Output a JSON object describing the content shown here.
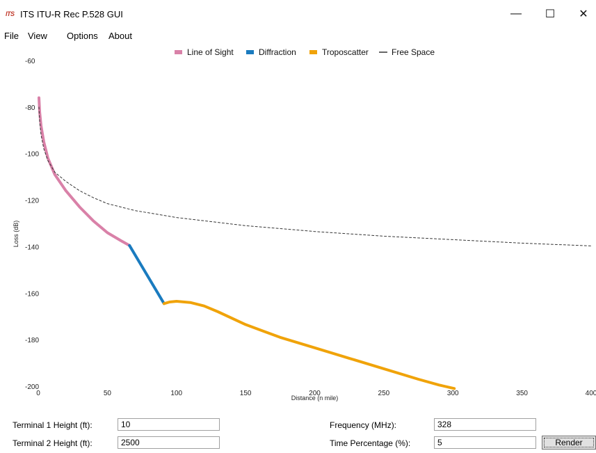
{
  "window": {
    "logo_text": "ITS",
    "title": "ITS ITU-R Rec P.528 GUI",
    "minimize_glyph": "—",
    "maximize_glyph": "☐",
    "close_glyph": "✕"
  },
  "menu": {
    "items": [
      "File",
      "View",
      "Options",
      "About"
    ]
  },
  "legend": {
    "items": [
      {
        "label": "Line of Sight",
        "color": "#d981a8"
      },
      {
        "label": "Diffraction",
        "color": "#1a7bbf"
      },
      {
        "label": "Troposcatter",
        "color": "#f0a30a"
      },
      {
        "label": "Free Space",
        "color": "#333333"
      }
    ]
  },
  "chart_data": {
    "type": "line",
    "xlabel": "Distance (n mile)",
    "ylabel": "Loss (dB)",
    "xlim": [
      0,
      400
    ],
    "ylim": [
      -200,
      -60
    ],
    "xticks": [
      0,
      50,
      100,
      150,
      200,
      250,
      300,
      350,
      400
    ],
    "yticks": [
      -60,
      -80,
      -100,
      -120,
      -140,
      -160,
      -180,
      -200
    ],
    "series": [
      {
        "name": "Line of Sight",
        "color": "#d981a8",
        "style": "solid",
        "points": [
          [
            0.5,
            -76
          ],
          [
            1,
            -82
          ],
          [
            2,
            -88
          ],
          [
            4,
            -95
          ],
          [
            7,
            -102
          ],
          [
            12,
            -109
          ],
          [
            20,
            -116
          ],
          [
            30,
            -123
          ],
          [
            40,
            -129
          ],
          [
            50,
            -134
          ],
          [
            60,
            -137.5
          ],
          [
            66,
            -139.5
          ]
        ]
      },
      {
        "name": "Diffraction",
        "color": "#1a7bbf",
        "style": "solid",
        "points": [
          [
            66,
            -139.5
          ],
          [
            91,
            -164.5
          ]
        ]
      },
      {
        "name": "Troposcatter",
        "color": "#f0a30a",
        "style": "solid",
        "points": [
          [
            91,
            -164.5
          ],
          [
            95,
            -163.8
          ],
          [
            100,
            -163.5
          ],
          [
            110,
            -164
          ],
          [
            120,
            -165.5
          ],
          [
            130,
            -168
          ],
          [
            150,
            -173.5
          ],
          [
            175,
            -179
          ],
          [
            200,
            -183.5
          ],
          [
            225,
            -188
          ],
          [
            250,
            -192.5
          ],
          [
            275,
            -197
          ],
          [
            290,
            -199.5
          ],
          [
            301,
            -201
          ]
        ]
      },
      {
        "name": "Free Space",
        "color": "#333333",
        "style": "dashed",
        "points": [
          [
            0.5,
            -80
          ],
          [
            1,
            -86
          ],
          [
            2,
            -92
          ],
          [
            4,
            -98
          ],
          [
            7,
            -103
          ],
          [
            12,
            -108
          ],
          [
            20,
            -112
          ],
          [
            30,
            -116
          ],
          [
            40,
            -119
          ],
          [
            50,
            -121.5
          ],
          [
            70,
            -124.5
          ],
          [
            100,
            -127.5
          ],
          [
            150,
            -131
          ],
          [
            200,
            -133.5
          ],
          [
            250,
            -135.5
          ],
          [
            300,
            -137
          ],
          [
            350,
            -138.5
          ],
          [
            400,
            -139.7
          ]
        ]
      }
    ]
  },
  "form": {
    "terminal1_label": "Terminal 1 Height (ft):",
    "terminal1_value": "10",
    "terminal2_label": "Terminal 2 Height (ft):",
    "terminal2_value": "2500",
    "frequency_label": "Frequency (MHz):",
    "frequency_value": "328",
    "time_label": "Time Percentage (%):",
    "time_value": "5",
    "render_label": "Render"
  }
}
